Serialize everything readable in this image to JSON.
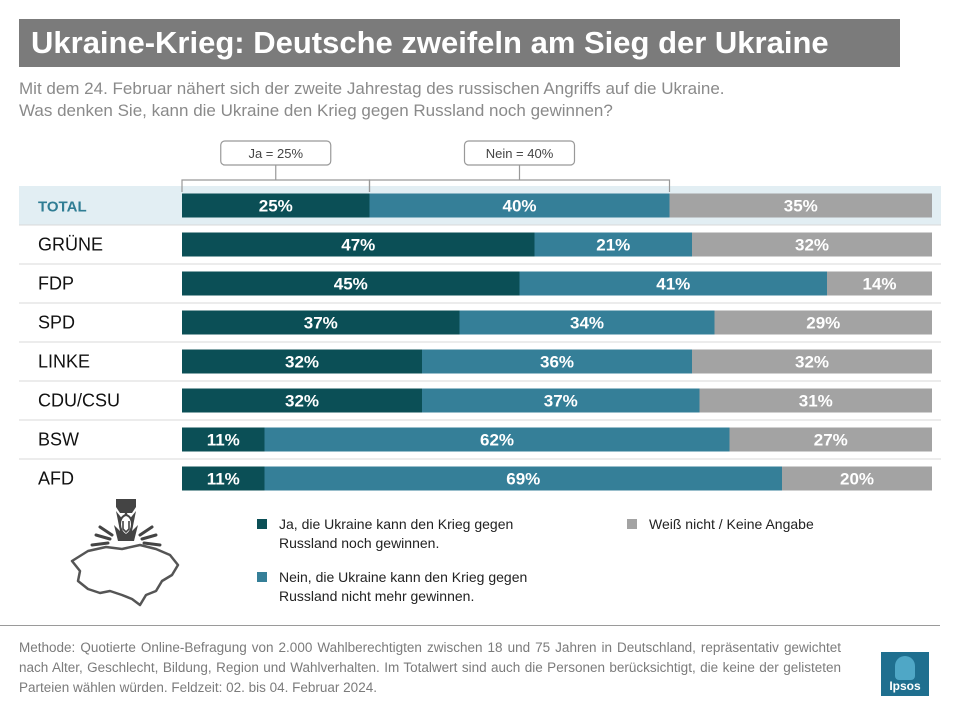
{
  "title": "Ukraine-Krieg: Deutsche zweifeln am Sieg der Ukraine",
  "subtitle": {
    "line1": "Mit dem 24. Februar nähert sich der zweite Jahrestag des russischen Angriffs auf die Ukraine.",
    "line2": "Was denken Sie, kann die Ukraine den Krieg gegen Russland noch gewinnen?"
  },
  "chart_data": {
    "type": "bar",
    "orientation": "horizontal",
    "stacked": true,
    "unit": "%",
    "categories": [
      "TOTAL",
      "GRÜNE",
      "FDP",
      "SPD",
      "LINKE",
      "CDU/CSU",
      "BSW",
      "AFD"
    ],
    "series": [
      {
        "name": "Ja, die Ukraine kann den Krieg gegen Russland noch gewinnen.",
        "color": "#0b4f56",
        "values": [
          25,
          47,
          45,
          37,
          32,
          32,
          11,
          11
        ]
      },
      {
        "name": "Nein, die Ukraine kann den Krieg gegen Russland nicht mehr gewinnen.",
        "color": "#357f98",
        "values": [
          40,
          21,
          41,
          34,
          36,
          37,
          62,
          69
        ]
      },
      {
        "name": "Weiß nicht / Keine Angabe",
        "color": "#a3a3a3",
        "values": [
          35,
          32,
          14,
          29,
          32,
          31,
          27,
          20
        ]
      }
    ],
    "xlim": [
      0,
      100
    ],
    "annotations": [
      "Ja = 25%",
      "Nein = 40%"
    ]
  },
  "legend": {
    "ja": {
      "line1": "Ja, die Ukraine kann den Krieg gegen",
      "line2": "Russland noch gewinnen."
    },
    "nein": {
      "line1": "Nein, die Ukraine kann den Krieg gegen",
      "line2": "Russland nicht mehr gewinnen."
    },
    "weiss": {
      "line1": "Weiß nicht / Keine Angabe"
    }
  },
  "footer": "Methode: Quotierte Online-Befragung von 2.000 Wahlberechtigten zwischen 18 und 75 Jahren in Deutschland, repräsentativ gewichtet nach Alter, Geschlecht, Bildung, Region und Wahlverhalten. Im Totalwert sind auch die Personen berücksichtigt, die keine der gelisteten Parteien wählen würden. Feldzeit: 02. bis 04. Februar 2024.",
  "logo_text": "Ipsos",
  "colors": {
    "ja": "#0b4f56",
    "nein": "#357f98",
    "weiss": "#a3a3a3",
    "total_band": "#e2eef3",
    "title_bar": "#7b7b7b"
  }
}
